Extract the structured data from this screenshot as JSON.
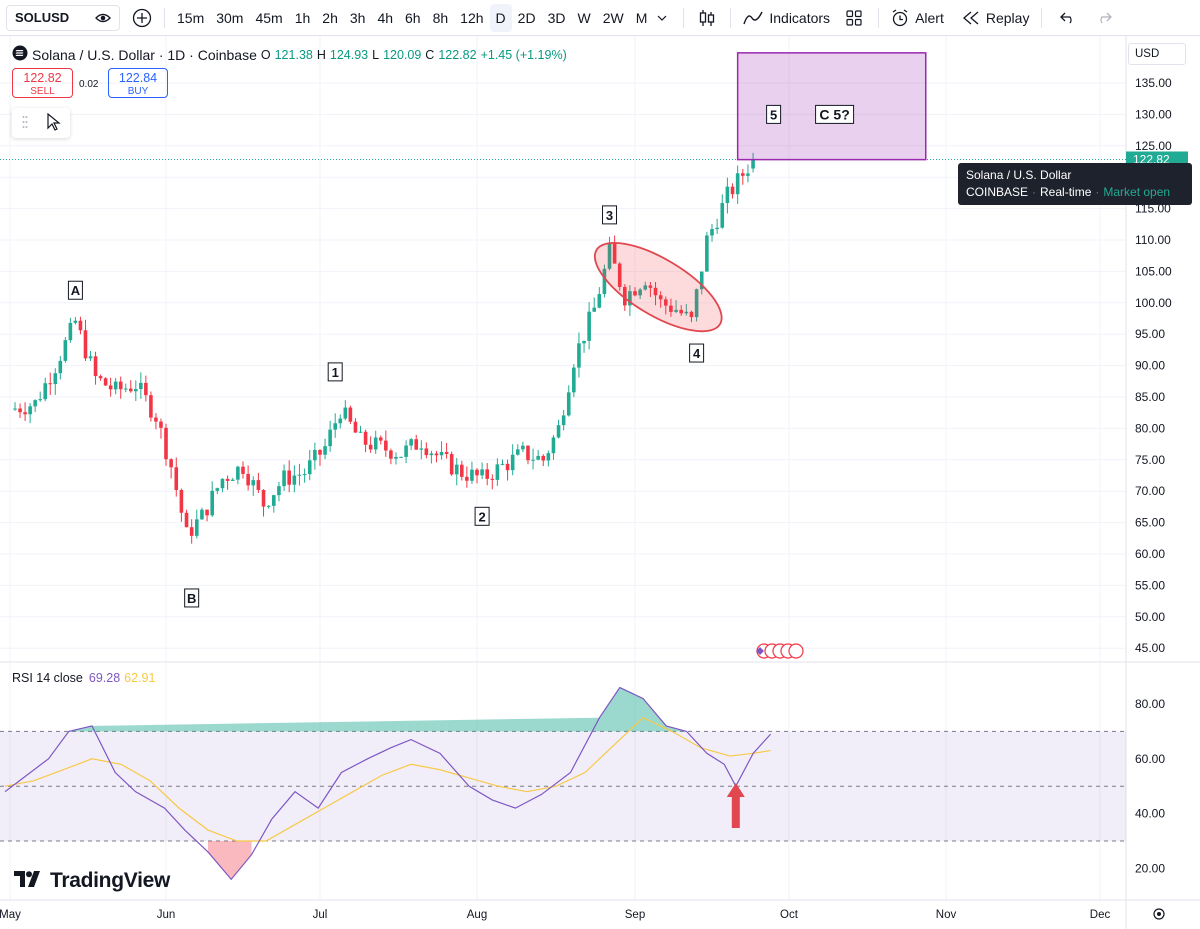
{
  "toolbar": {
    "symbol": "SOLUSD",
    "intervals": [
      "15m",
      "30m",
      "45m",
      "1h",
      "2h",
      "3h",
      "4h",
      "6h",
      "8h",
      "12h",
      "D",
      "2D",
      "3D",
      "W",
      "2W",
      "M"
    ],
    "active_interval": "D",
    "indicators_label": "Indicators",
    "alert_label": "Alert",
    "replay_label": "Replay"
  },
  "header": {
    "title": "Solana / U.S. Dollar · 1D · Coinbase",
    "o_label": "O",
    "o_value": "121.38",
    "h_label": "H",
    "h_value": "124.93",
    "l_label": "L",
    "l_value": "120.09",
    "c_label": "C",
    "c_value": "122.82",
    "change": "+1.45 (+1.19%)"
  },
  "trade": {
    "sell_price": "122.82",
    "sell_label": "SELL",
    "buy_price": "122.84",
    "buy_label": "BUY",
    "spread": "0.02"
  },
  "currency": "USD",
  "tooltip": {
    "line1": "Solana / U.S. Dollar",
    "exchange": "COINBASE",
    "feed": "Real-time",
    "status": "Market open"
  },
  "rsi": {
    "title": "RSI 14 close",
    "value": "69.28",
    "ma_value": "62.91"
  },
  "brand": "TradingView",
  "colors": {
    "up": "#22ab94",
    "down": "#f23645",
    "rsi": "#7e57c2",
    "rsi_ma": "#f7c948",
    "target_box": "#9c27b0"
  },
  "chart_data": [
    {
      "type": "candlestick",
      "title": "Solana / U.S. Dollar · 1D · Coinbase",
      "ylim": [
        42,
        140
      ],
      "y_ticks": [
        "135.00",
        "130.00",
        "125.00",
        "120.00",
        "115.00",
        "110.00",
        "105.00",
        "100.00",
        "95.00",
        "90.00",
        "85.00",
        "80.00",
        "75.00",
        "70.00",
        "65.00",
        "60.00",
        "55.00",
        "50.00",
        "45.00"
      ],
      "x_ticks": [
        "May",
        "Jun",
        "Jul",
        "Aug",
        "Sep",
        "Oct",
        "Nov",
        "Dec"
      ],
      "last_price": "122.82",
      "close_path": [
        [
          "2025-05-01",
          83
        ],
        [
          "2025-05-06",
          84
        ],
        [
          "2025-05-10",
          90
        ],
        [
          "2025-05-14",
          97
        ],
        [
          "2025-05-18",
          88
        ],
        [
          "2025-05-22",
          86
        ],
        [
          "2025-05-26",
          87
        ],
        [
          "2025-05-30",
          82
        ],
        [
          "2025-06-02",
          74
        ],
        [
          "2025-06-05",
          63
        ],
        [
          "2025-06-08",
          66
        ],
        [
          "2025-06-12",
          72
        ],
        [
          "2025-06-16",
          74
        ],
        [
          "2025-06-20",
          68
        ],
        [
          "2025-06-24",
          72
        ],
        [
          "2025-06-28",
          73
        ],
        [
          "2025-07-02",
          77
        ],
        [
          "2025-07-05",
          83
        ],
        [
          "2025-07-09",
          78
        ],
        [
          "2025-07-13",
          77
        ],
        [
          "2025-07-17",
          76
        ],
        [
          "2025-07-21",
          78
        ],
        [
          "2025-07-25",
          75
        ],
        [
          "2025-07-29",
          73
        ],
        [
          "2025-08-02",
          72
        ],
        [
          "2025-08-06",
          74
        ],
        [
          "2025-08-10",
          76
        ],
        [
          "2025-08-14",
          75
        ],
        [
          "2025-08-17",
          80
        ],
        [
          "2025-08-20",
          91
        ],
        [
          "2025-08-24",
          99
        ],
        [
          "2025-08-27",
          108
        ],
        [
          "2025-08-30",
          101
        ],
        [
          "2025-09-03",
          104
        ],
        [
          "2025-09-06",
          100
        ],
        [
          "2025-09-09",
          99
        ],
        [
          "2025-09-12",
          97
        ],
        [
          "2025-09-15",
          110
        ],
        [
          "2025-09-19",
          117
        ],
        [
          "2025-09-24",
          122.82
        ]
      ],
      "wave_labels": [
        {
          "label": "A",
          "date": "2025-05-14",
          "price": 102
        },
        {
          "label": "B",
          "date": "2025-06-06",
          "price": 53
        },
        {
          "label": "1",
          "date": "2025-07-04",
          "price": 89
        },
        {
          "label": "2",
          "date": "2025-08-02",
          "price": 66
        },
        {
          "label": "3",
          "date": "2025-08-27",
          "price": 114
        },
        {
          "label": "4",
          "date": "2025-09-13",
          "price": 92
        },
        {
          "label": "5",
          "date": "2025-09-28",
          "price": 130
        },
        {
          "label": "C 5?",
          "date": "2025-10-10",
          "price": 130
        }
      ],
      "target_zone": {
        "from": "2025-09-21",
        "to": "2025-10-28",
        "low": 122.8,
        "high": 139.8
      },
      "consolidation_ellipse": {
        "from": "2025-08-24",
        "to": "2025-09-18",
        "low": 95,
        "high": 110
      }
    },
    {
      "type": "line",
      "title": "RSI 14 close",
      "ylim": [
        10,
        92
      ],
      "y_ticks": [
        "80.00",
        "60.00",
        "40.00",
        "20.00"
      ],
      "bands": {
        "upper": 70,
        "middle": 50,
        "lower": 30
      },
      "series": [
        {
          "name": "RSI",
          "values": [
            [
              0,
              48
            ],
            [
              5,
              52
            ],
            [
              15,
              60
            ],
            [
              22,
              70
            ],
            [
              30,
              72
            ],
            [
              38,
              55
            ],
            [
              45,
              48
            ],
            [
              55,
              42
            ],
            [
              62,
              34
            ],
            [
              70,
              26
            ],
            [
              78,
              16
            ],
            [
              85,
              25
            ],
            [
              92,
              38
            ],
            [
              100,
              48
            ],
            [
              108,
              42
            ],
            [
              116,
              55
            ],
            [
              125,
              60
            ],
            [
              133,
              64
            ],
            [
              140,
              67
            ],
            [
              150,
              62
            ],
            [
              160,
              50
            ],
            [
              168,
              45
            ],
            [
              176,
              42
            ],
            [
              185,
              47
            ],
            [
              195,
              55
            ],
            [
              205,
              75
            ],
            [
              212,
              86
            ],
            [
              220,
              82
            ],
            [
              228,
              72
            ],
            [
              235,
              70
            ],
            [
              242,
              62
            ],
            [
              248,
              58
            ],
            [
              252,
              50
            ],
            [
              258,
              62
            ],
            [
              264,
              69
            ]
          ]
        },
        {
          "name": "RSI-based MA",
          "values": [
            [
              0,
              50
            ],
            [
              10,
              52
            ],
            [
              20,
              56
            ],
            [
              30,
              60
            ],
            [
              40,
              58
            ],
            [
              50,
              52
            ],
            [
              60,
              42
            ],
            [
              70,
              34
            ],
            [
              80,
              30
            ],
            [
              90,
              30
            ],
            [
              100,
              36
            ],
            [
              110,
              42
            ],
            [
              120,
              48
            ],
            [
              130,
              54
            ],
            [
              140,
              58
            ],
            [
              150,
              56
            ],
            [
              160,
              53
            ],
            [
              170,
              50
            ],
            [
              180,
              48
            ],
            [
              190,
              50
            ],
            [
              200,
              55
            ],
            [
              210,
              65
            ],
            [
              220,
              75
            ],
            [
              230,
              70
            ],
            [
              240,
              64
            ],
            [
              250,
              61
            ],
            [
              258,
              62
            ],
            [
              264,
              63
            ]
          ]
        }
      ]
    }
  ]
}
